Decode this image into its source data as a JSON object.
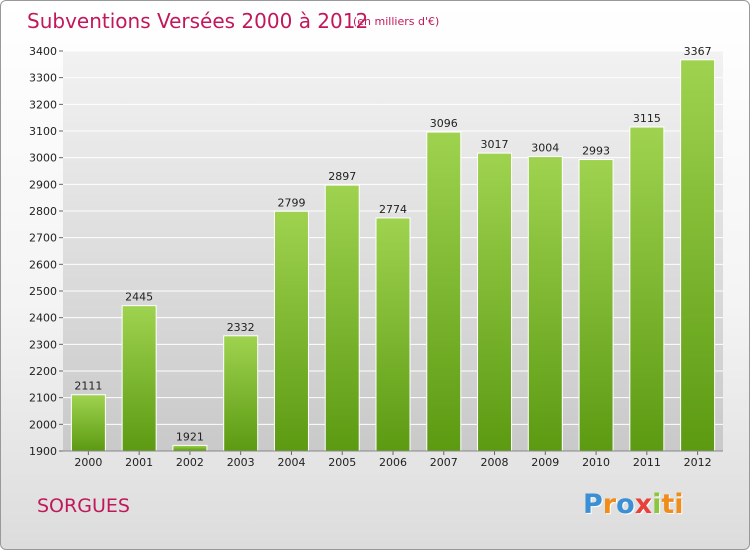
{
  "header": {
    "title": "Subventions Versées 2000 à 2012",
    "unit": "(en milliers d'€)"
  },
  "footer": {
    "city": "SORGUES",
    "logo": [
      "P",
      "r",
      "o",
      "x",
      "i",
      "ti"
    ]
  },
  "colors": {
    "bar_top": "#9fd34f",
    "bar_bottom": "#5c9a12",
    "title": "#c2185b",
    "grid": "#ffffff",
    "plot_bg_top": "#f2f2f2",
    "plot_bg_bottom": "#c9c9c9"
  },
  "chart_data": {
    "type": "bar",
    "title": "Subventions Versées 2000 à 2012",
    "subtitle": "(en milliers d'€)",
    "xlabel": "",
    "ylabel": "",
    "categories": [
      "2000",
      "2001",
      "2002",
      "2003",
      "2004",
      "2005",
      "2006",
      "2007",
      "2008",
      "2009",
      "2010",
      "2011",
      "2012"
    ],
    "values": [
      2111,
      2445,
      1921,
      2332,
      2799,
      2897,
      2774,
      3096,
      3017,
      3004,
      2993,
      3115,
      3367
    ],
    "ylim": [
      1900,
      3400
    ],
    "yticks": [
      1900,
      2000,
      2100,
      2200,
      2300,
      2400,
      2500,
      2600,
      2700,
      2800,
      2900,
      3000,
      3100,
      3200,
      3300,
      3400
    ],
    "grid": true,
    "legend": "none"
  }
}
